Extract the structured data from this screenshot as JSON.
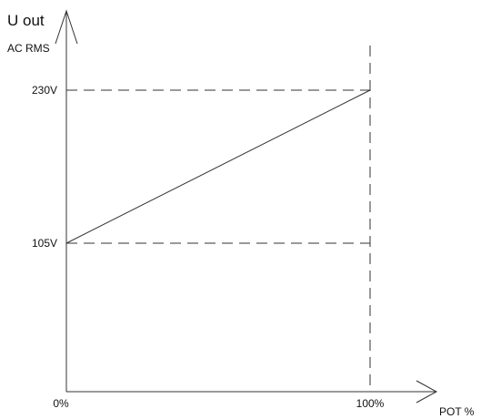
{
  "chart_data": {
    "type": "line",
    "ylabel_line1": "U out",
    "ylabel_line2": "AC RMS",
    "xlabel": "POT %",
    "x": [
      0,
      100
    ],
    "series": [
      {
        "values": [
          105,
          230
        ]
      }
    ],
    "x_ticks": [
      {
        "value": 0,
        "label": "0%"
      },
      {
        "value": 100,
        "label": "100%"
      }
    ],
    "y_ticks": [
      {
        "value": 105,
        "label": "105V"
      },
      {
        "value": 230,
        "label": "230V"
      }
    ],
    "guides": {
      "horizontal": [
        105,
        230
      ],
      "vertical": [
        100
      ],
      "style": "dashed"
    },
    "grid": false,
    "legend": "none",
    "color": "#333333"
  }
}
